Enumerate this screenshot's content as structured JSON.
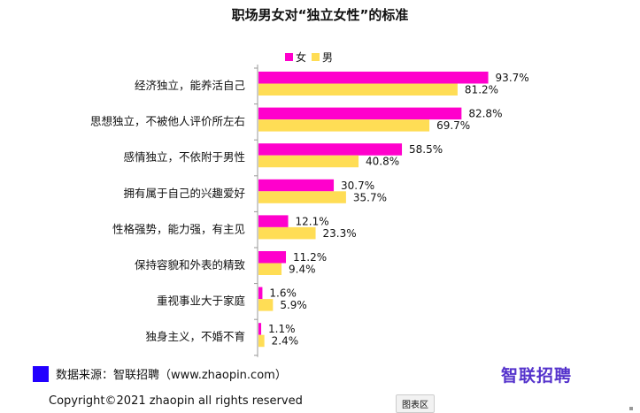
{
  "title": "职场男女对“独立女性”的标准",
  "legend": {
    "female": "女",
    "male": "男"
  },
  "colors": {
    "female": "#ff00cc",
    "male": "#ffdd55",
    "source_square": "#2200ff",
    "brand": "#5533cc"
  },
  "chart_data": {
    "type": "bar",
    "orientation": "horizontal",
    "title": "职场男女对“独立女性”的标准",
    "categories": [
      "经济独立，能养活自己",
      "思想独立，不被他人评价所左右",
      "感情独立，不依附于男性",
      "拥有属于自己的兴趣爱好",
      "性格强势，能力强，有主见",
      "保持容貌和外表的精致",
      "重视事业大于家庭",
      "独身主义，不婚不育"
    ],
    "series": [
      {
        "name": "女",
        "values": [
          93.7,
          82.8,
          58.5,
          30.7,
          12.1,
          11.2,
          1.6,
          1.1
        ],
        "labels": [
          "93.7%",
          "82.8%",
          "58.5%",
          "30.7%",
          "12.1%",
          "11.2%",
          "1.6%",
          "1.1%"
        ]
      },
      {
        "name": "男",
        "values": [
          81.2,
          69.7,
          40.8,
          35.7,
          23.3,
          9.4,
          5.9,
          2.4
        ],
        "labels": [
          "81.2%",
          "69.7%",
          "40.8%",
          "35.7%",
          "23.3%",
          "9.4%",
          "5.9%",
          "2.4%"
        ]
      }
    ],
    "xlim": [
      0,
      100
    ],
    "legend": "top"
  },
  "footer": {
    "source": "数据来源：智联招聘（www.zhaopin.com）",
    "brand": "智联招聘",
    "copyright": "Copyright©2021  zhaopin all rights reserved",
    "chart_area_button": "图表区"
  }
}
